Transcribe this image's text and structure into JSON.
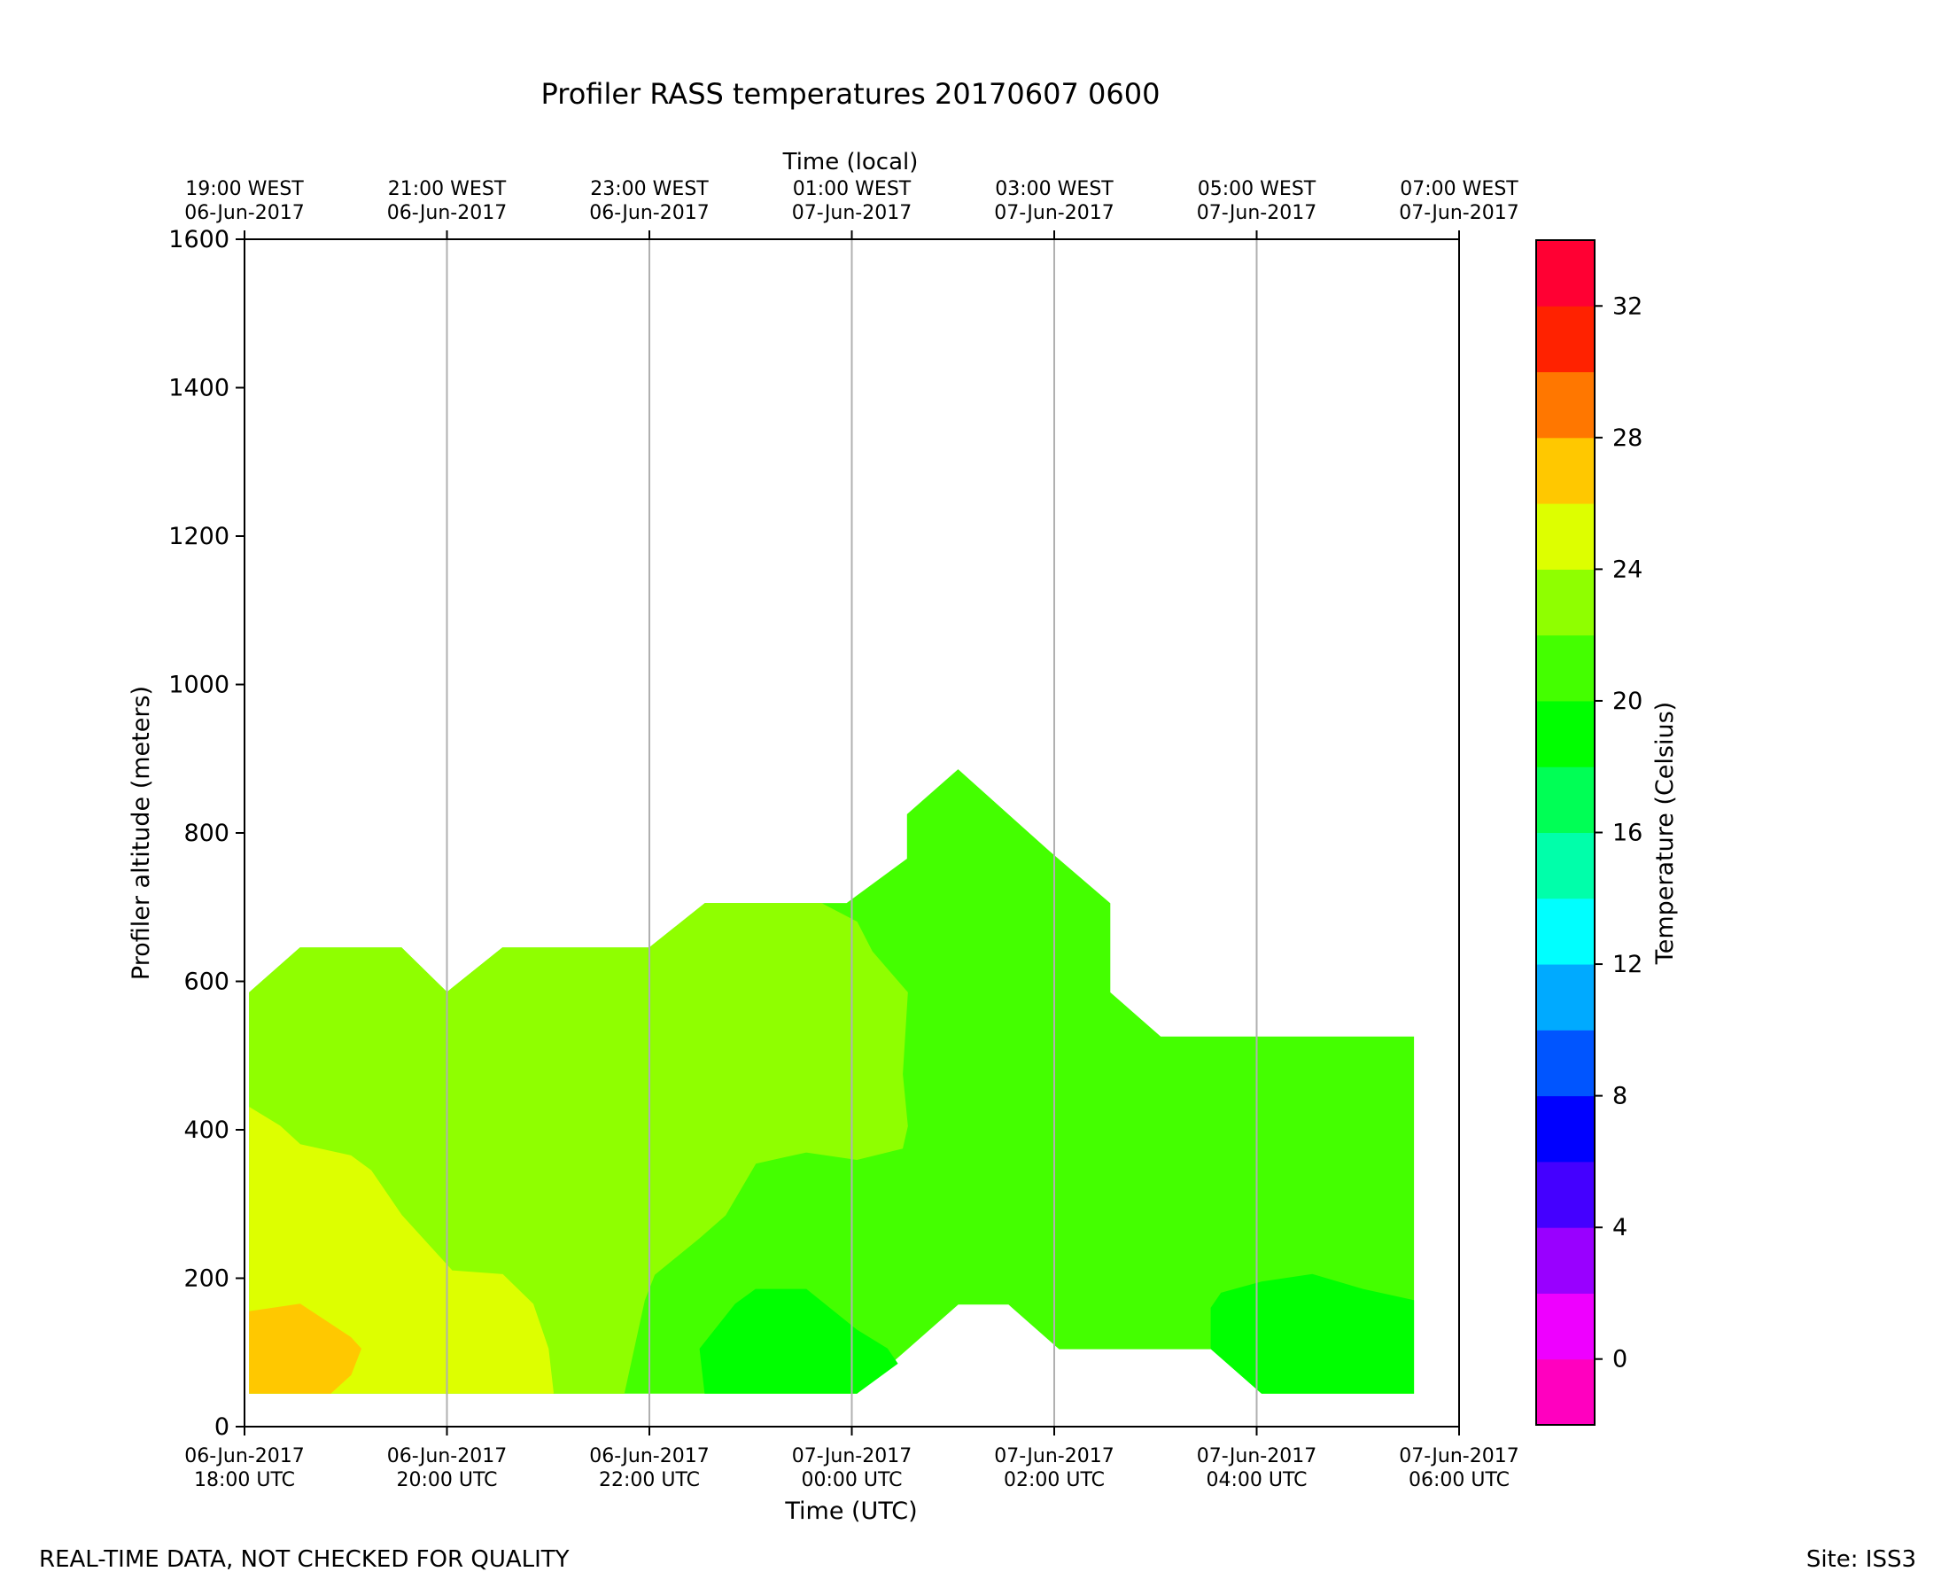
{
  "chart_data": {
    "type": "heatmap",
    "subtype": "filled-contour time-height section",
    "title": "Profiler RASS temperatures 20170607 0600",
    "xlabel": "Time (UTC)",
    "x2label": "Time (local)",
    "ylabel": "Profiler altitude (meters)",
    "colorbar_label": "Temperature (Celsius)",
    "x_unit": "hours after 06-Jun-2017 18:00 UTC",
    "xlim": [
      0,
      12
    ],
    "ylim": [
      0,
      1600
    ],
    "x_ticks": [
      {
        "x": 0,
        "label1": "06-Jun-2017",
        "label2": "18:00 UTC"
      },
      {
        "x": 2,
        "label1": "06-Jun-2017",
        "label2": "20:00 UTC"
      },
      {
        "x": 4,
        "label1": "06-Jun-2017",
        "label2": "22:00 UTC"
      },
      {
        "x": 6,
        "label1": "07-Jun-2017",
        "label2": "00:00 UTC"
      },
      {
        "x": 8,
        "label1": "07-Jun-2017",
        "label2": "02:00 UTC"
      },
      {
        "x": 10,
        "label1": "07-Jun-2017",
        "label2": "04:00 UTC"
      },
      {
        "x": 12,
        "label1": "07-Jun-2017",
        "label2": "06:00 UTC"
      }
    ],
    "x2_ticks": [
      {
        "x": 0,
        "label1": "19:00 WEST",
        "label2": "06-Jun-2017"
      },
      {
        "x": 2,
        "label1": "21:00 WEST",
        "label2": "06-Jun-2017"
      },
      {
        "x": 4,
        "label1": "23:00 WEST",
        "label2": "06-Jun-2017"
      },
      {
        "x": 6,
        "label1": "01:00 WEST",
        "label2": "07-Jun-2017"
      },
      {
        "x": 8,
        "label1": "03:00 WEST",
        "label2": "07-Jun-2017"
      },
      {
        "x": 10,
        "label1": "05:00 WEST",
        "label2": "07-Jun-2017"
      },
      {
        "x": 12,
        "label1": "07:00 WEST",
        "label2": "07-Jun-2017"
      }
    ],
    "y_ticks": [
      0,
      200,
      400,
      600,
      800,
      1000,
      1200,
      1400,
      1600
    ],
    "vertical_grid": true,
    "colorbar": {
      "min": -2,
      "max": 34,
      "ticks": [
        0,
        4,
        8,
        12,
        16,
        20,
        24,
        28,
        32
      ],
      "bins": [
        {
          "from": -2,
          "to": 0,
          "color": "#ff00bf"
        },
        {
          "from": 0,
          "to": 2,
          "color": "#ee00ff"
        },
        {
          "from": 2,
          "to": 4,
          "color": "#9900ff"
        },
        {
          "from": 4,
          "to": 6,
          "color": "#4400ff"
        },
        {
          "from": 6,
          "to": 8,
          "color": "#0000ff"
        },
        {
          "from": 8,
          "to": 10,
          "color": "#0055ff"
        },
        {
          "from": 10,
          "to": 12,
          "color": "#00aaff"
        },
        {
          "from": 12,
          "to": 14,
          "color": "#00ffff"
        },
        {
          "from": 14,
          "to": 16,
          "color": "#00ffaa"
        },
        {
          "from": 16,
          "to": 18,
          "color": "#00ff55"
        },
        {
          "from": 18,
          "to": 20,
          "color": "#00ff00"
        },
        {
          "from": 20,
          "to": 22,
          "color": "#44ff00"
        },
        {
          "from": 22,
          "to": 24,
          "color": "#8fff00"
        },
        {
          "from": 24,
          "to": 26,
          "color": "#ddff00"
        },
        {
          "from": 26,
          "to": 28,
          "color": "#ffc800"
        },
        {
          "from": 28,
          "to": 30,
          "color": "#ff7700"
        },
        {
          "from": 30,
          "to": 32,
          "color": "#ff2200"
        },
        {
          "from": 32,
          "to": 34,
          "color": "#ff0033"
        }
      ]
    },
    "contour_regions": [
      {
        "name": "20-22 C",
        "color": "#44ff00",
        "points": [
          [
            0.05,
            45
          ],
          [
            0.05,
            585
          ],
          [
            0.55,
            645
          ],
          [
            1.55,
            645
          ],
          [
            2.0,
            585
          ],
          [
            2.55,
            645
          ],
          [
            4.0,
            645
          ],
          [
            4.55,
            705
          ],
          [
            5.95,
            705
          ],
          [
            6.55,
            765
          ],
          [
            6.55,
            825
          ],
          [
            7.05,
            885
          ],
          [
            7.95,
            775
          ],
          [
            8.55,
            705
          ],
          [
            8.55,
            585
          ],
          [
            9.05,
            525
          ],
          [
            11.55,
            525
          ],
          [
            11.55,
            45
          ],
          [
            10.05,
            45
          ],
          [
            9.55,
            105
          ],
          [
            8.05,
            105
          ],
          [
            7.55,
            165
          ],
          [
            7.05,
            165
          ],
          [
            6.05,
            45
          ]
        ]
      },
      {
        "name": "22-24 C",
        "color": "#8fff00",
        "points": [
          [
            0.05,
            430
          ],
          [
            0.05,
            585
          ],
          [
            0.55,
            645
          ],
          [
            1.55,
            645
          ],
          [
            2.0,
            585
          ],
          [
            2.55,
            645
          ],
          [
            4.0,
            645
          ],
          [
            4.55,
            705
          ],
          [
            5.7,
            705
          ],
          [
            6.05,
            680
          ],
          [
            6.2,
            640
          ],
          [
            6.55,
            585
          ],
          [
            6.5,
            475
          ],
          [
            6.55,
            405
          ],
          [
            6.5,
            375
          ],
          [
            6.05,
            360
          ],
          [
            5.55,
            370
          ],
          [
            5.05,
            355
          ],
          [
            4.75,
            285
          ],
          [
            4.5,
            255
          ],
          [
            4.05,
            205
          ],
          [
            3.95,
            170
          ],
          [
            3.75,
            45
          ],
          [
            3.05,
            45
          ],
          [
            3.0,
            105
          ],
          [
            2.85,
            165
          ],
          [
            2.55,
            205
          ],
          [
            2.05,
            210
          ],
          [
            1.55,
            285
          ],
          [
            1.25,
            345
          ],
          [
            1.05,
            365
          ],
          [
            0.55,
            380
          ],
          [
            0.35,
            405
          ]
        ]
      },
      {
        "name": "24-26 C",
        "color": "#ddff00",
        "points": [
          [
            0.05,
            45
          ],
          [
            0.05,
            430
          ],
          [
            0.35,
            405
          ],
          [
            0.55,
            380
          ],
          [
            1.05,
            365
          ],
          [
            1.25,
            345
          ],
          [
            1.55,
            285
          ],
          [
            2.05,
            210
          ],
          [
            2.55,
            205
          ],
          [
            2.85,
            165
          ],
          [
            3.0,
            105
          ],
          [
            3.05,
            45
          ]
        ]
      },
      {
        "name": "26-28 C",
        "color": "#ffc800",
        "points": [
          [
            0.05,
            45
          ],
          [
            0.05,
            155
          ],
          [
            0.55,
            165
          ],
          [
            1.05,
            120
          ],
          [
            1.15,
            105
          ],
          [
            1.05,
            70
          ],
          [
            0.85,
            45
          ]
        ]
      },
      {
        "name": "18-20 C night",
        "color": "#00ff00",
        "points": [
          [
            4.55,
            45
          ],
          [
            4.5,
            105
          ],
          [
            4.85,
            165
          ],
          [
            5.05,
            185
          ],
          [
            5.55,
            185
          ],
          [
            6.05,
            130
          ],
          [
            6.35,
            105
          ],
          [
            6.45,
            85
          ],
          [
            6.05,
            45
          ]
        ]
      },
      {
        "name": "18-20 C morning",
        "color": "#00ff00",
        "points": [
          [
            9.55,
            105
          ],
          [
            9.55,
            160
          ],
          [
            9.65,
            180
          ],
          [
            10.05,
            195
          ],
          [
            10.55,
            205
          ],
          [
            11.05,
            185
          ],
          [
            11.55,
            170
          ],
          [
            11.55,
            45
          ],
          [
            10.05,
            45
          ]
        ]
      }
    ]
  },
  "footer": {
    "left_note": "REAL-TIME DATA, NOT CHECKED FOR QUALITY",
    "site": "Site: ISS3"
  }
}
